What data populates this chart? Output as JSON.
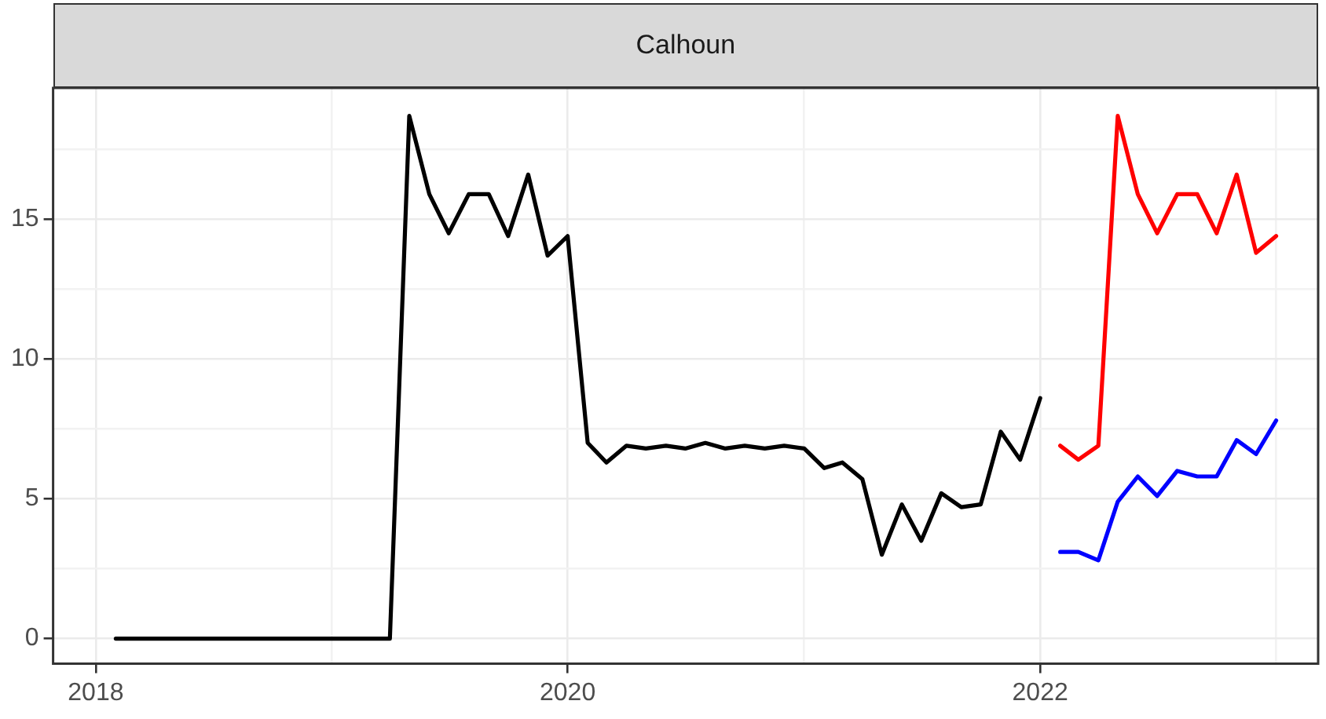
{
  "chart_data": {
    "type": "line",
    "title": "Calhoun",
    "xlim": [
      "2017-10-27",
      "2023-03-07"
    ],
    "xticks": [
      "2018",
      {
        "value": "2019",
        "label": null
      },
      "2020",
      {
        "value": "2021",
        "label": null
      },
      "2022",
      {
        "value": "2023",
        "label": null
      }
    ],
    "ylim": [
      -0.9,
      19.7
    ],
    "yticks": [
      0,
      {
        "value": 2.5,
        "label": null
      },
      5,
      {
        "value": 7.5,
        "label": null
      },
      10,
      {
        "value": 12.5,
        "label": null
      },
      15,
      {
        "value": 17.5,
        "label": null
      }
    ],
    "grid": true,
    "legend": false,
    "marker": "none",
    "line_style": "solid",
    "series": [
      {
        "color": "#000000",
        "x": [
          "2018-02",
          "2018-03",
          "2018-04",
          "2018-05",
          "2018-06",
          "2018-07",
          "2018-08",
          "2018-09",
          "2018-10",
          "2018-11",
          "2018-12",
          "2019-01",
          "2019-02",
          "2019-03",
          "2019-04",
          "2019-05",
          "2019-06",
          "2019-07",
          "2019-08",
          "2019-09",
          "2019-10",
          "2019-11",
          "2019-12",
          "2020-01",
          "2020-02",
          "2020-03",
          "2020-04",
          "2020-05",
          "2020-06",
          "2020-07",
          "2020-08",
          "2020-09",
          "2020-10",
          "2020-11",
          "2020-12",
          "2021-01",
          "2021-02",
          "2021-03",
          "2021-04",
          "2021-05",
          "2021-06",
          "2021-07",
          "2021-08",
          "2021-09",
          "2021-10",
          "2021-11",
          "2021-12",
          "2022-01"
        ],
        "values": [
          0,
          0,
          0,
          0,
          0,
          0,
          0,
          0,
          0,
          0,
          0,
          0,
          0,
          0,
          0,
          18.7,
          15.9,
          14.5,
          15.9,
          15.9,
          14.4,
          16.6,
          13.7,
          14.4,
          7.0,
          6.3,
          6.9,
          6.8,
          6.9,
          6.8,
          7.0,
          6.8,
          6.9,
          6.8,
          6.9,
          6.8,
          6.1,
          6.3,
          5.7,
          3.0,
          4.8,
          3.5,
          5.2,
          4.7,
          4.8,
          7.4,
          6.4,
          8.6
        ]
      },
      {
        "color": "#ff0000",
        "x": [
          "2022-02",
          "2022-03",
          "2022-04",
          "2022-05",
          "2022-06",
          "2022-07",
          "2022-08",
          "2022-09",
          "2022-10",
          "2022-11",
          "2022-12",
          "2023-01"
        ],
        "values": [
          6.9,
          6.4,
          6.9,
          18.7,
          15.9,
          14.5,
          15.9,
          15.9,
          14.5,
          16.6,
          13.8,
          14.4
        ]
      },
      {
        "color": "#0000ff",
        "x": [
          "2022-02",
          "2022-03",
          "2022-04",
          "2022-05",
          "2022-06",
          "2022-07",
          "2022-08",
          "2022-09",
          "2022-10",
          "2022-11",
          "2022-12",
          "2023-01"
        ],
        "values": [
          3.1,
          3.1,
          2.8,
          4.9,
          5.8,
          5.1,
          6.0,
          5.8,
          5.8,
          7.1,
          6.6,
          7.8
        ]
      }
    ]
  }
}
